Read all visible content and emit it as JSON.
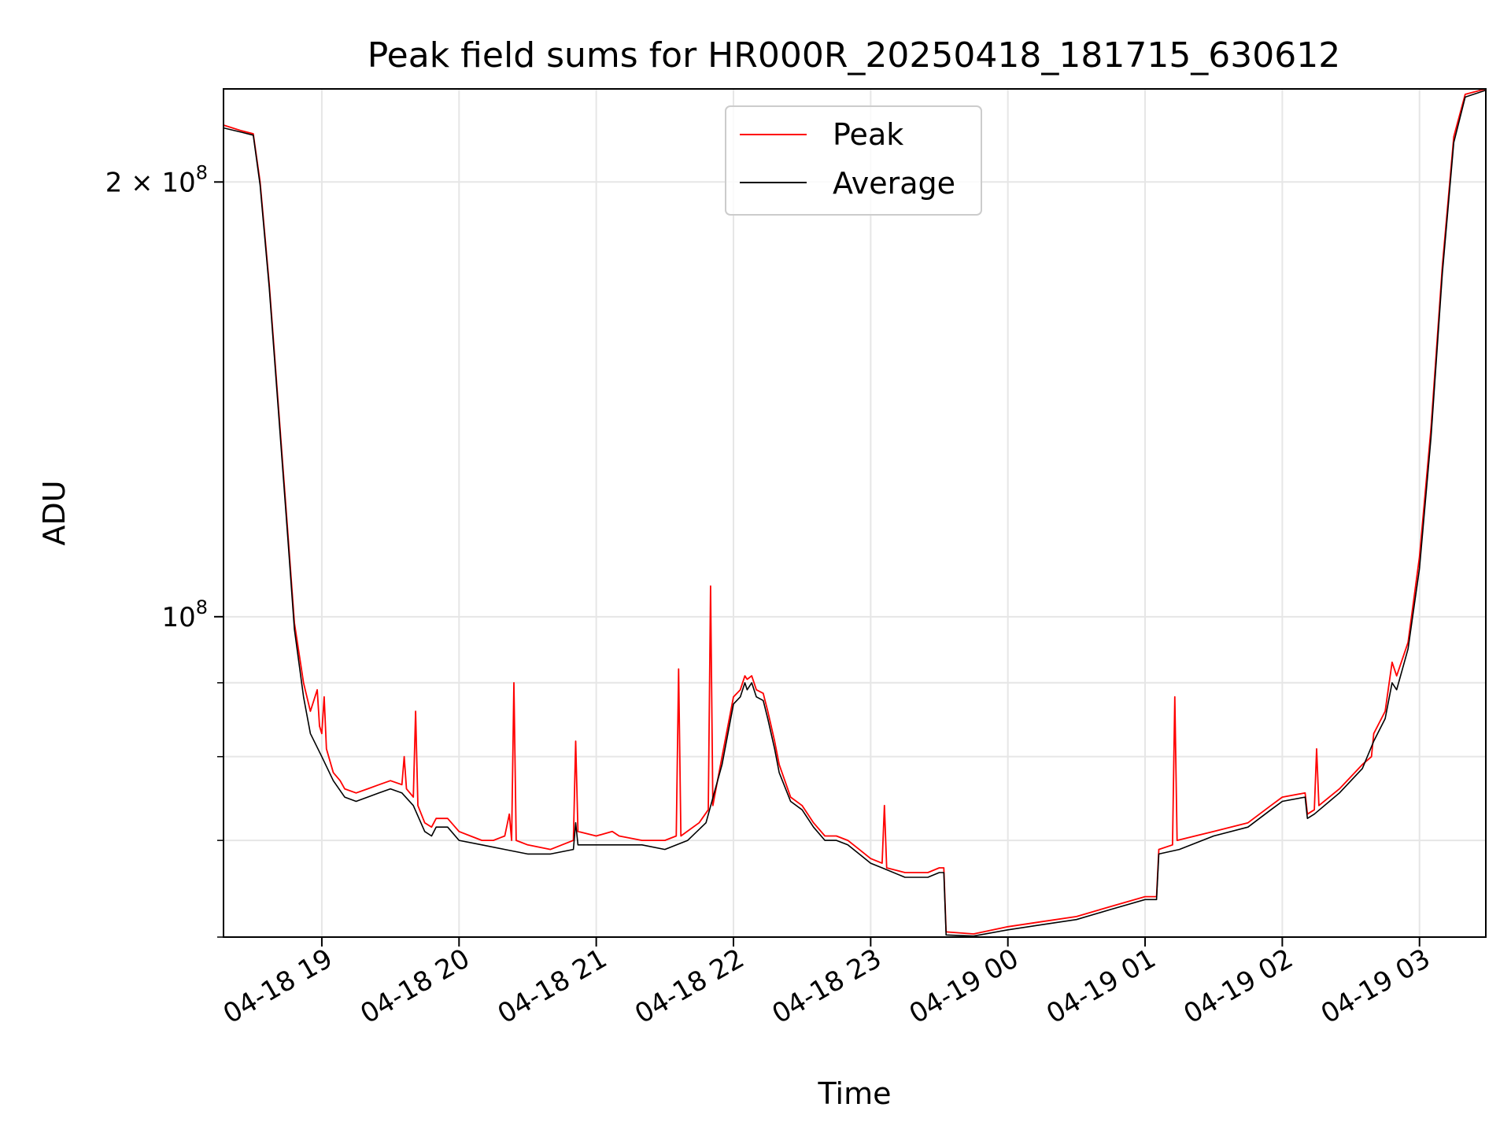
{
  "chart_data": {
    "type": "line",
    "title": "Peak field sums for HR000R_20250418_181715_630612",
    "xlabel": "Time",
    "ylabel": "ADU",
    "yscale": "log",
    "grid": true,
    "legend_position": "top-center",
    "xlim": [
      "2025-04-18 18:17",
      "2025-04-19 03:29"
    ],
    "ylim": [
      60000000,
      232000000
    ],
    "x_ticks": [
      {
        "value": "2025-04-18 19:00",
        "label": "04-18 19"
      },
      {
        "value": "2025-04-18 20:00",
        "label": "04-18 20"
      },
      {
        "value": "2025-04-18 21:00",
        "label": "04-18 21"
      },
      {
        "value": "2025-04-18 22:00",
        "label": "04-18 22"
      },
      {
        "value": "2025-04-18 23:00",
        "label": "04-18 23"
      },
      {
        "value": "2025-04-19 00:00",
        "label": "04-19 00"
      },
      {
        "value": "2025-04-19 01:00",
        "label": "04-19 01"
      },
      {
        "value": "2025-04-19 02:00",
        "label": "04-19 02"
      },
      {
        "value": "2025-04-19 03:00",
        "label": "04-19 03"
      }
    ],
    "y_major_ticks": [
      {
        "value": 100000000,
        "mantissa": "",
        "exponent": "8"
      },
      {
        "value": 200000000,
        "mantissa": "2",
        "exponent": "8"
      }
    ],
    "y_minor_ticks": [
      60000000,
      70000000,
      80000000,
      90000000
    ],
    "series": [
      {
        "name": "Peak",
        "color": "#ff0000",
        "points": [
          [
            "2025-04-18 18:17",
            219000000
          ],
          [
            "2025-04-18 18:25",
            217000000
          ],
          [
            "2025-04-18 18:30",
            216000000
          ],
          [
            "2025-04-18 18:33",
            200000000
          ],
          [
            "2025-04-18 18:37",
            170000000
          ],
          [
            "2025-04-18 18:41",
            140000000
          ],
          [
            "2025-04-18 18:45",
            115000000
          ],
          [
            "2025-04-18 18:48",
            99000000
          ],
          [
            "2025-04-18 18:52",
            90000000
          ],
          [
            "2025-04-18 18:55",
            86000000
          ],
          [
            "2025-04-18 18:58",
            89000000
          ],
          [
            "2025-04-18 18:59",
            84000000
          ],
          [
            "2025-04-18 19:00",
            83000000
          ],
          [
            "2025-04-18 19:01",
            88000000
          ],
          [
            "2025-04-18 19:02",
            81000000
          ],
          [
            "2025-04-18 19:05",
            78000000
          ],
          [
            "2025-04-18 19:08",
            77000000
          ],
          [
            "2025-04-18 19:10",
            76000000
          ],
          [
            "2025-04-18 19:15",
            75500000
          ],
          [
            "2025-04-18 19:20",
            76000000
          ],
          [
            "2025-04-18 19:25",
            76500000
          ],
          [
            "2025-04-18 19:30",
            77000000
          ],
          [
            "2025-04-18 19:35",
            76500000
          ],
          [
            "2025-04-18 19:36",
            80000000
          ],
          [
            "2025-04-18 19:37",
            76000000
          ],
          [
            "2025-04-18 19:40",
            75000000
          ],
          [
            "2025-04-18 19:41",
            86000000
          ],
          [
            "2025-04-18 19:42",
            74000000
          ],
          [
            "2025-04-18 19:45",
            72000000
          ],
          [
            "2025-04-18 19:48",
            71500000
          ],
          [
            "2025-04-18 19:50",
            72500000
          ],
          [
            "2025-04-18 19:55",
            72500000
          ],
          [
            "2025-04-18 20:00",
            71000000
          ],
          [
            "2025-04-18 20:05",
            70500000
          ],
          [
            "2025-04-18 20:10",
            70000000
          ],
          [
            "2025-04-18 20:15",
            70000000
          ],
          [
            "2025-04-18 20:20",
            70500000
          ],
          [
            "2025-04-18 20:22",
            73000000
          ],
          [
            "2025-04-18 20:23",
            70000000
          ],
          [
            "2025-04-18 20:24",
            90000000
          ],
          [
            "2025-04-18 20:25",
            70000000
          ],
          [
            "2025-04-18 20:30",
            69500000
          ],
          [
            "2025-04-18 20:40",
            69000000
          ],
          [
            "2025-04-18 20:50",
            70000000
          ],
          [
            "2025-04-18 20:51",
            82000000
          ],
          [
            "2025-04-18 20:52",
            71000000
          ],
          [
            "2025-04-18 21:00",
            70500000
          ],
          [
            "2025-04-18 21:07",
            71000000
          ],
          [
            "2025-04-18 21:10",
            70500000
          ],
          [
            "2025-04-18 21:20",
            70000000
          ],
          [
            "2025-04-18 21:30",
            70000000
          ],
          [
            "2025-04-18 21:35",
            70500000
          ],
          [
            "2025-04-18 21:36",
            92000000
          ],
          [
            "2025-04-18 21:37",
            70500000
          ],
          [
            "2025-04-18 21:45",
            72000000
          ],
          [
            "2025-04-18 21:49",
            73500000
          ],
          [
            "2025-04-18 21:50",
            105000000
          ],
          [
            "2025-04-18 21:51",
            74000000
          ],
          [
            "2025-04-18 21:55",
            80000000
          ],
          [
            "2025-04-18 22:00",
            88000000
          ],
          [
            "2025-04-18 22:03",
            89000000
          ],
          [
            "2025-04-18 22:05",
            91000000
          ],
          [
            "2025-04-18 22:06",
            90500000
          ],
          [
            "2025-04-18 22:08",
            91000000
          ],
          [
            "2025-04-18 22:10",
            89000000
          ],
          [
            "2025-04-18 22:13",
            88500000
          ],
          [
            "2025-04-18 22:15",
            86000000
          ],
          [
            "2025-04-18 22:18",
            82000000
          ],
          [
            "2025-04-18 22:20",
            79000000
          ],
          [
            "2025-04-18 22:25",
            75000000
          ],
          [
            "2025-04-18 22:30",
            74000000
          ],
          [
            "2025-04-18 22:35",
            72000000
          ],
          [
            "2025-04-18 22:40",
            70500000
          ],
          [
            "2025-04-18 22:45",
            70500000
          ],
          [
            "2025-04-18 22:50",
            70000000
          ],
          [
            "2025-04-18 22:55",
            69000000
          ],
          [
            "2025-04-18 23:00",
            68000000
          ],
          [
            "2025-04-18 23:05",
            67500000
          ],
          [
            "2025-04-18 23:06",
            74000000
          ],
          [
            "2025-04-18 23:07",
            67000000
          ],
          [
            "2025-04-18 23:15",
            66500000
          ],
          [
            "2025-04-18 23:25",
            66500000
          ],
          [
            "2025-04-18 23:30",
            67000000
          ],
          [
            "2025-04-18 23:32",
            67000000
          ],
          [
            "2025-04-18 23:33",
            60500000
          ],
          [
            "2025-04-18 23:45",
            60300000
          ],
          [
            "2025-04-19 00:00",
            61000000
          ],
          [
            "2025-04-19 00:15",
            61500000
          ],
          [
            "2025-04-19 00:30",
            62000000
          ],
          [
            "2025-04-19 00:45",
            63000000
          ],
          [
            "2025-04-19 01:00",
            64000000
          ],
          [
            "2025-04-19 01:05",
            64000000
          ],
          [
            "2025-04-19 01:06",
            69000000
          ],
          [
            "2025-04-19 01:12",
            69500000
          ],
          [
            "2025-04-19 01:13",
            88000000
          ],
          [
            "2025-04-19 01:14",
            70000000
          ],
          [
            "2025-04-19 01:30",
            71000000
          ],
          [
            "2025-04-19 01:45",
            72000000
          ],
          [
            "2025-04-19 01:55",
            74000000
          ],
          [
            "2025-04-19 02:00",
            75000000
          ],
          [
            "2025-04-19 02:10",
            75500000
          ],
          [
            "2025-04-19 02:11",
            73000000
          ],
          [
            "2025-04-19 02:14",
            73500000
          ],
          [
            "2025-04-19 02:15",
            81000000
          ],
          [
            "2025-04-19 02:16",
            74000000
          ],
          [
            "2025-04-19 02:25",
            76000000
          ],
          [
            "2025-04-19 02:35",
            79000000
          ],
          [
            "2025-04-19 02:39",
            80000000
          ],
          [
            "2025-04-19 02:40",
            83000000
          ],
          [
            "2025-04-19 02:45",
            86000000
          ],
          [
            "2025-04-19 02:48",
            93000000
          ],
          [
            "2025-04-19 02:50",
            91000000
          ],
          [
            "2025-04-19 02:55",
            96000000
          ],
          [
            "2025-04-19 03:00",
            110000000
          ],
          [
            "2025-04-19 03:05",
            135000000
          ],
          [
            "2025-04-19 03:10",
            175000000
          ],
          [
            "2025-04-19 03:15",
            215000000
          ],
          [
            "2025-04-19 03:20",
            230000000
          ],
          [
            "2025-04-19 03:29",
            232000000
          ]
        ]
      },
      {
        "name": "Average",
        "color": "#000000",
        "points": [
          [
            "2025-04-18 18:17",
            218000000
          ],
          [
            "2025-04-18 18:25",
            216500000
          ],
          [
            "2025-04-18 18:30",
            215500000
          ],
          [
            "2025-04-18 18:33",
            199000000
          ],
          [
            "2025-04-18 18:37",
            169000000
          ],
          [
            "2025-04-18 18:41",
            139000000
          ],
          [
            "2025-04-18 18:45",
            114000000
          ],
          [
            "2025-04-18 18:48",
            98000000
          ],
          [
            "2025-04-18 18:52",
            88000000
          ],
          [
            "2025-04-18 18:55",
            83000000
          ],
          [
            "2025-04-18 19:00",
            80000000
          ],
          [
            "2025-04-18 19:05",
            77000000
          ],
          [
            "2025-04-18 19:10",
            75000000
          ],
          [
            "2025-04-18 19:15",
            74500000
          ],
          [
            "2025-04-18 19:20",
            75000000
          ],
          [
            "2025-04-18 19:25",
            75500000
          ],
          [
            "2025-04-18 19:30",
            76000000
          ],
          [
            "2025-04-18 19:35",
            75500000
          ],
          [
            "2025-04-18 19:40",
            74000000
          ],
          [
            "2025-04-18 19:45",
            71000000
          ],
          [
            "2025-04-18 19:48",
            70500000
          ],
          [
            "2025-04-18 19:50",
            71500000
          ],
          [
            "2025-04-18 19:55",
            71500000
          ],
          [
            "2025-04-18 20:00",
            70000000
          ],
          [
            "2025-04-18 20:10",
            69500000
          ],
          [
            "2025-04-18 20:20",
            69000000
          ],
          [
            "2025-04-18 20:30",
            68500000
          ],
          [
            "2025-04-18 20:40",
            68500000
          ],
          [
            "2025-04-18 20:50",
            69000000
          ],
          [
            "2025-04-18 20:51",
            72000000
          ],
          [
            "2025-04-18 20:52",
            69500000
          ],
          [
            "2025-04-18 21:00",
            69500000
          ],
          [
            "2025-04-18 21:10",
            69500000
          ],
          [
            "2025-04-18 21:20",
            69500000
          ],
          [
            "2025-04-18 21:30",
            69000000
          ],
          [
            "2025-04-18 21:40",
            70000000
          ],
          [
            "2025-04-18 21:48",
            72000000
          ],
          [
            "2025-04-18 21:55",
            79000000
          ],
          [
            "2025-04-18 22:00",
            87000000
          ],
          [
            "2025-04-18 22:03",
            88000000
          ],
          [
            "2025-04-18 22:05",
            90000000
          ],
          [
            "2025-04-18 22:06",
            89000000
          ],
          [
            "2025-04-18 22:08",
            90000000
          ],
          [
            "2025-04-18 22:10",
            88000000
          ],
          [
            "2025-04-18 22:13",
            87500000
          ],
          [
            "2025-04-18 22:15",
            85000000
          ],
          [
            "2025-04-18 22:18",
            81000000
          ],
          [
            "2025-04-18 22:20",
            78000000
          ],
          [
            "2025-04-18 22:25",
            74500000
          ],
          [
            "2025-04-18 22:30",
            73500000
          ],
          [
            "2025-04-18 22:35",
            71500000
          ],
          [
            "2025-04-18 22:40",
            70000000
          ],
          [
            "2025-04-18 22:45",
            70000000
          ],
          [
            "2025-04-18 22:50",
            69500000
          ],
          [
            "2025-04-18 22:55",
            68500000
          ],
          [
            "2025-04-18 23:00",
            67500000
          ],
          [
            "2025-04-18 23:05",
            67000000
          ],
          [
            "2025-04-18 23:15",
            66000000
          ],
          [
            "2025-04-18 23:25",
            66000000
          ],
          [
            "2025-04-18 23:30",
            66500000
          ],
          [
            "2025-04-18 23:32",
            66500000
          ],
          [
            "2025-04-18 23:33",
            60200000
          ],
          [
            "2025-04-18 23:45",
            60100000
          ],
          [
            "2025-04-19 00:00",
            60700000
          ],
          [
            "2025-04-19 00:15",
            61200000
          ],
          [
            "2025-04-19 00:30",
            61700000
          ],
          [
            "2025-04-19 00:45",
            62700000
          ],
          [
            "2025-04-19 01:00",
            63700000
          ],
          [
            "2025-04-19 01:05",
            63700000
          ],
          [
            "2025-04-19 01:06",
            68500000
          ],
          [
            "2025-04-19 01:15",
            69000000
          ],
          [
            "2025-04-19 01:30",
            70500000
          ],
          [
            "2025-04-19 01:45",
            71500000
          ],
          [
            "2025-04-19 01:55",
            73500000
          ],
          [
            "2025-04-19 02:00",
            74500000
          ],
          [
            "2025-04-19 02:10",
            75000000
          ],
          [
            "2025-04-19 02:11",
            72500000
          ],
          [
            "2025-04-19 02:14",
            73000000
          ],
          [
            "2025-04-19 02:25",
            75500000
          ],
          [
            "2025-04-19 02:35",
            78500000
          ],
          [
            "2025-04-19 02:40",
            82000000
          ],
          [
            "2025-04-19 02:45",
            85000000
          ],
          [
            "2025-04-19 02:48",
            90000000
          ],
          [
            "2025-04-19 02:50",
            89000000
          ],
          [
            "2025-04-19 02:55",
            95000000
          ],
          [
            "2025-04-19 03:00",
            108000000
          ],
          [
            "2025-04-19 03:05",
            133000000
          ],
          [
            "2025-04-19 03:10",
            173000000
          ],
          [
            "2025-04-19 03:15",
            213000000
          ],
          [
            "2025-04-19 03:20",
            229000000
          ],
          [
            "2025-04-19 03:29",
            231500000
          ]
        ]
      }
    ]
  }
}
